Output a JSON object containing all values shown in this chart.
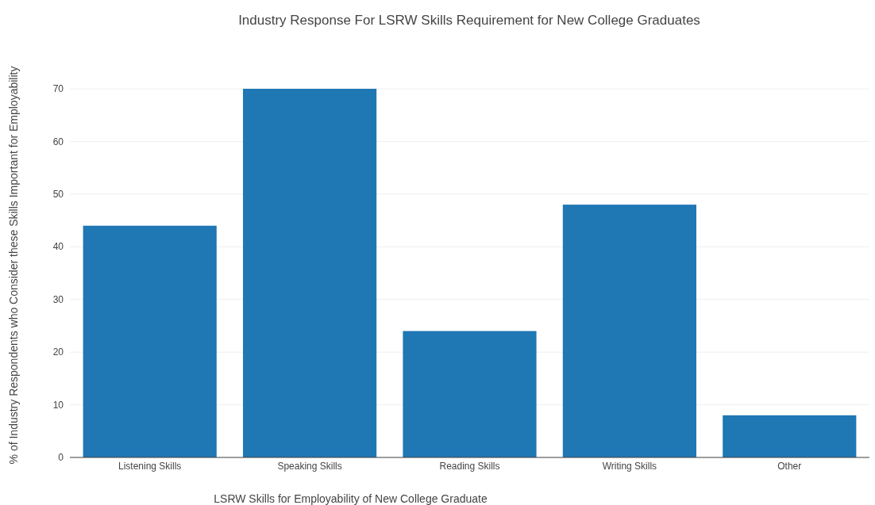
{
  "chart_data": {
    "type": "bar",
    "title": "Industry Response For LSRW Skills Requirement for New College Graduates",
    "xlabel": "LSRW Skills for Employability of New College Graduate",
    "ylabel": "% of Industry Respondents who Consider these Skills Important for Employability",
    "categories": [
      "Listening Skills",
      "Speaking Skills",
      "Reading Skills",
      "Writing Skills",
      "Other"
    ],
    "values": [
      44,
      70,
      24,
      48,
      8
    ],
    "color": "#1f77b4",
    "ylim": [
      0,
      70
    ],
    "yticks": [
      0,
      10,
      20,
      30,
      40,
      50,
      60,
      70
    ],
    "grid": "y"
  }
}
